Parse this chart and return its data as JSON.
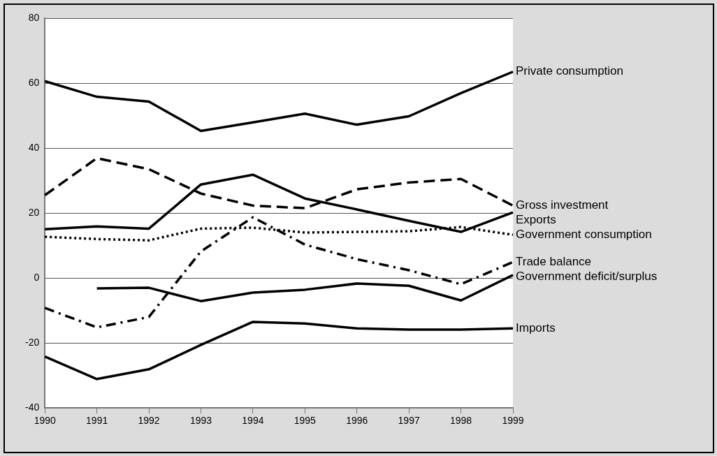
{
  "chart_data": {
    "type": "line",
    "categories": [
      "1990",
      "1991",
      "1992",
      "1993",
      "1994",
      "1995",
      "1996",
      "1997",
      "1998",
      "1999"
    ],
    "ylim": [
      -40,
      80
    ],
    "yticks": [
      -40,
      -20,
      0,
      20,
      40,
      60,
      80
    ],
    "grid": "y",
    "legend": false,
    "marker": "none",
    "series": [
      {
        "name": "Private consumption",
        "color": "#000000",
        "line_style": "solid",
        "values": [
          60.6,
          55.8,
          54.3,
          45.3,
          47.9,
          50.6,
          47.2,
          49.8,
          56.9,
          63.5
        ]
      },
      {
        "name": "Gross investment",
        "color": "#000000",
        "line_style": "dashed",
        "values": [
          25.5,
          36.9,
          33.5,
          26,
          22.3,
          21.5,
          27.3,
          29.4,
          30.5,
          22.3
        ]
      },
      {
        "name": "Exports",
        "color": "#000000",
        "line_style": "solid",
        "values": [
          15,
          15.9,
          15.2,
          28.8,
          31.8,
          24.5,
          21.1,
          17.6,
          14.2,
          20.2
        ]
      },
      {
        "name": "Government consumption",
        "color": "#000000",
        "line_style": "dotted",
        "values": [
          12.7,
          12,
          11.6,
          15.2,
          15.5,
          14,
          14.2,
          14.4,
          15.7,
          13.3
        ]
      },
      {
        "name": "Trade balance",
        "color": "#000000",
        "line_style": "dashdot",
        "values": [
          -9.2,
          -15.2,
          -12,
          8.2,
          18.7,
          10.3,
          5.8,
          2.4,
          -1.9,
          4.9
        ]
      },
      {
        "name": "Government deficit/surplus",
        "color": "#000000",
        "line_style": "solid",
        "values": [
          null,
          -3.2,
          -3,
          -7.1,
          -4.5,
          -3.6,
          -1.7,
          -2.4,
          -6.9,
          0.9
        ]
      },
      {
        "name": "Imports",
        "color": "#000000",
        "line_style": "solid",
        "values": [
          -24.2,
          -31.1,
          -28.1,
          -20.6,
          -13.5,
          -14,
          -15.5,
          -15.9,
          -15.9,
          -15.5
        ]
      }
    ]
  }
}
